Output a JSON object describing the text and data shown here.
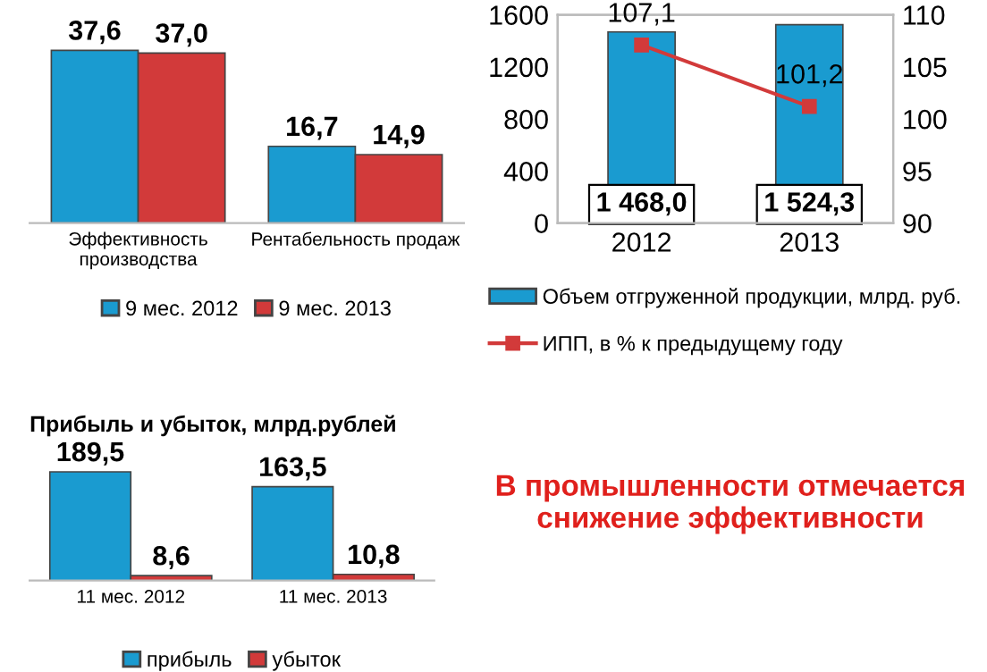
{
  "chart_data": [
    {
      "type": "bar",
      "categories": [
        "Эффективность\nпроизводства",
        "Рентабельность продаж"
      ],
      "legend": "bottom",
      "series": [
        {
          "name": "9 мес. 2012",
          "color": "#1a9bd0",
          "values": [
            37.6,
            16.7
          ],
          "value_labels": [
            "37,6",
            "16,7"
          ]
        },
        {
          "name": "9 мес. 2013",
          "color": "#d23a3a",
          "values": [
            37.0,
            14.9
          ],
          "value_labels": [
            "37,0",
            "14,9"
          ]
        }
      ]
    },
    {
      "type": "bar",
      "categories": [
        "2012",
        "2013"
      ],
      "ylim": [
        0,
        1600
      ],
      "yticks": [
        0,
        400,
        800,
        1200,
        1600
      ],
      "y2lim": [
        90,
        110
      ],
      "y2ticks": [
        90,
        95,
        100,
        105,
        110
      ],
      "legend": "bottom",
      "series": [
        {
          "name": "Объем отгруженной продукции, млрд. руб.",
          "color": "#1a9bd0",
          "values": [
            1468.0,
            1524.3
          ],
          "value_labels": [
            "1 468,0",
            "1 524,3"
          ]
        },
        {
          "name": "ИПП, в % к предыдущему году",
          "type": "line",
          "axis": "y2",
          "marker": "square",
          "color": "#d23a3a",
          "values": [
            107.1,
            101.2
          ],
          "value_labels": [
            "107,1",
            "101,2"
          ]
        }
      ]
    },
    {
      "type": "bar",
      "title": "Прибыль и убыток, млрд.рублей",
      "categories": [
        "11 мес. 2012",
        "11 мес. 2013"
      ],
      "legend": "bottom",
      "series": [
        {
          "name": "прибыль",
          "color": "#1a9bd0",
          "values": [
            189.5,
            163.5
          ],
          "value_labels": [
            "189,5",
            "163,5"
          ]
        },
        {
          "name": "убыток",
          "color": "#d23a3a",
          "values": [
            8.6,
            10.8
          ],
          "value_labels": [
            "8,6",
            "10,8"
          ]
        }
      ]
    },
    {
      "type": "other",
      "title": "В промышленности отмечается\nснижение эффективности"
    }
  ]
}
